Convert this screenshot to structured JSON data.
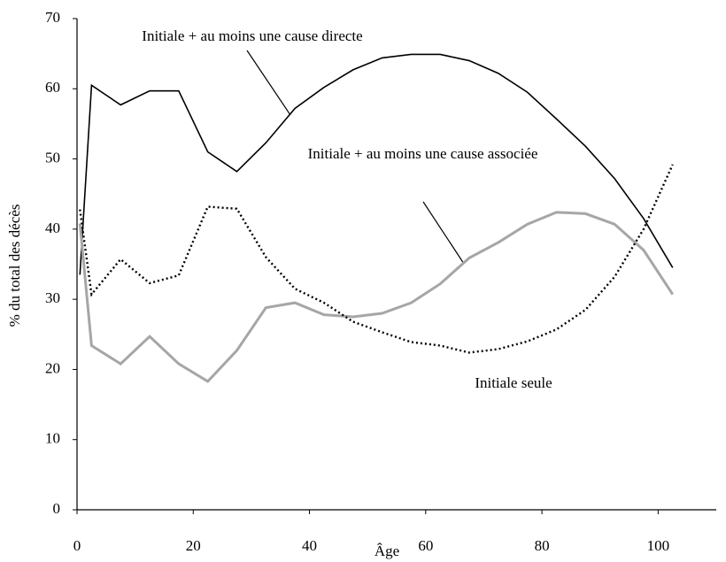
{
  "chart_data": {
    "type": "line",
    "xlabel": "Âge",
    "ylabel": "% du total des décès",
    "x": [
      0.5,
      2.5,
      7.5,
      12.5,
      17.5,
      22.5,
      27.5,
      32.5,
      37.5,
      42.5,
      47.5,
      52.5,
      57.5,
      62.5,
      67.5,
      72.5,
      77.5,
      82.5,
      87.5,
      92.5,
      97.5,
      102.5
    ],
    "series": [
      {
        "name": "Initiale + au moins une cause directe",
        "color": "#000000",
        "linestyle": "solid",
        "values": [
          33.5,
          60.5,
          57.7,
          59.7,
          59.7,
          51,
          48.2,
          52.3,
          57.2,
          60.2,
          62.7,
          64.4,
          64.9,
          64.9,
          64,
          62.2,
          59.5,
          55.7,
          51.8,
          47.2,
          41.5,
          34.5
        ]
      },
      {
        "name": "Initiale + au moins une cause associée",
        "color": "#a6a6a6",
        "linestyle": "solid",
        "values": [
          40.8,
          23.4,
          20.8,
          24.7,
          20.8,
          18.3,
          22.7,
          28.8,
          29.5,
          27.8,
          27.5,
          28,
          29.5,
          32.2,
          35.9,
          38.1,
          40.7,
          42.4,
          42.2,
          40.7,
          37,
          30.7
        ]
      },
      {
        "name": "Initiale seule",
        "color": "#000000",
        "linestyle": "dotted",
        "values": [
          42.8,
          30.7,
          35.7,
          32.3,
          33.4,
          43.2,
          42.9,
          36,
          31.5,
          29.5,
          26.8,
          25.3,
          23.9,
          23.4,
          22.4,
          22.9,
          24,
          25.7,
          28.5,
          33.2,
          40,
          49.2
        ]
      }
    ],
    "xlim": [
      0,
      110
    ],
    "xticks": [
      0,
      20,
      40,
      60,
      80,
      100
    ],
    "ylim": [
      0,
      70
    ],
    "yticks": [
      0,
      10,
      20,
      30,
      40,
      50,
      60,
      70
    ],
    "grid": false
  }
}
